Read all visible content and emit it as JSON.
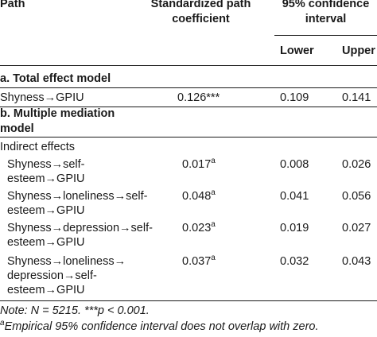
{
  "headers": {
    "path": "Path",
    "coef_line1": "Standardized path",
    "coef_line2": "coefficient",
    "ci_line1": "95% confidence",
    "ci_line2": "interval",
    "lower": "Lower",
    "upper": "Upper"
  },
  "sections": {
    "total": "a. Total effect model",
    "multiple_line1": "b. Multiple mediation",
    "multiple_line2": "model",
    "indirect": "Indirect effects"
  },
  "rows": [
    {
      "lines": [
        "Shyness→GPIU"
      ],
      "coef": "0.126***",
      "sup": "",
      "lower": "0.109",
      "upper": "0.141"
    },
    {
      "lines": [
        "Shyness→self-",
        "esteem→GPIU"
      ],
      "coef": "0.017",
      "sup": "a",
      "lower": "0.008",
      "upper": "0.026"
    },
    {
      "lines": [
        "Shyness→loneliness→self-",
        "esteem→GPIU"
      ],
      "coef": "0.048",
      "sup": "a",
      "lower": "0.041",
      "upper": "0.056"
    },
    {
      "lines": [
        "Shyness→depression→self-",
        "esteem→GPIU"
      ],
      "coef": "0.023",
      "sup": "a",
      "lower": "0.019",
      "upper": "0.027"
    },
    {
      "lines": [
        "Shyness→loneliness→",
        "depression→self-",
        "esteem→GPIU"
      ],
      "coef": "0.037",
      "sup": "a",
      "lower": "0.032",
      "upper": "0.043"
    }
  ],
  "notes": {
    "note": "Note: N = 5215. ***p < 0.001.",
    "footnote_mark": "a",
    "footnote": "Empirical 95% confidence interval does not overlap with zero."
  }
}
